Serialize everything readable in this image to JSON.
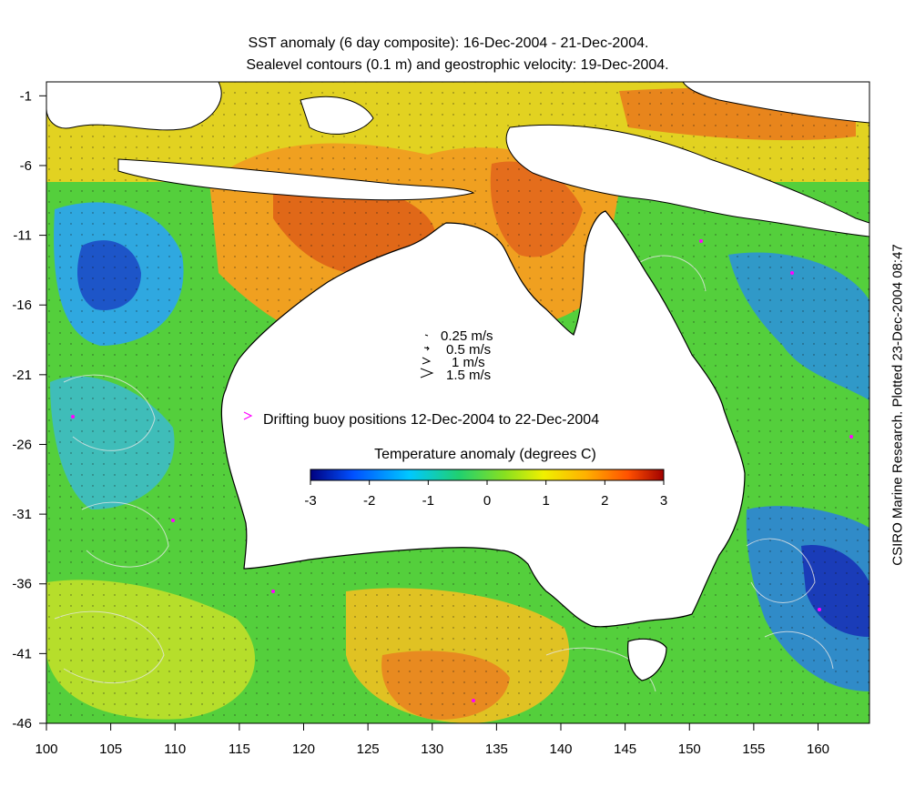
{
  "title_line1": "SST anomaly (6 day composite): 16-Dec-2004 - 21-Dec-2004.",
  "title_line2": "Sealevel contours (0.1 m) and geostrophic velocity: 19-Dec-2004.",
  "credit": "CSIRO Marine Research. Plotted 23-Dec-2004 08:47",
  "map": {
    "lon_range": [
      100,
      164
    ],
    "lat_range": [
      -46,
      0
    ],
    "x_ticks": [
      "100",
      "105",
      "110",
      "115",
      "120",
      "125",
      "130",
      "135",
      "140",
      "145",
      "150",
      "155",
      "160"
    ],
    "y_ticks": [
      "-1",
      "-6",
      "-11",
      "-16",
      "-21",
      "-26",
      "-31",
      "-36",
      "-41",
      "-46"
    ]
  },
  "velocity_legend": [
    {
      "label": "0.25 m/s"
    },
    {
      "label": "0.5 m/s"
    },
    {
      "label": "1 m/s"
    },
    {
      "label": "1.5 m/s"
    }
  ],
  "buoy_legend": "Drifting buoy positions 12-Dec-2004 to 22-Dec-2004",
  "colorbar": {
    "title": "Temperature anomaly (degrees C)",
    "range": [
      -3,
      3
    ],
    "ticks": [
      "-3",
      "-2",
      "-1",
      "0",
      "1",
      "2",
      "3"
    ]
  },
  "colors": {
    "land": "#ffffff",
    "warm": "#e07020",
    "cool": "#2a6fd6",
    "neutral": "#3cc23c",
    "buoy": "#ff00ff",
    "contour": "#e6e6e6"
  }
}
